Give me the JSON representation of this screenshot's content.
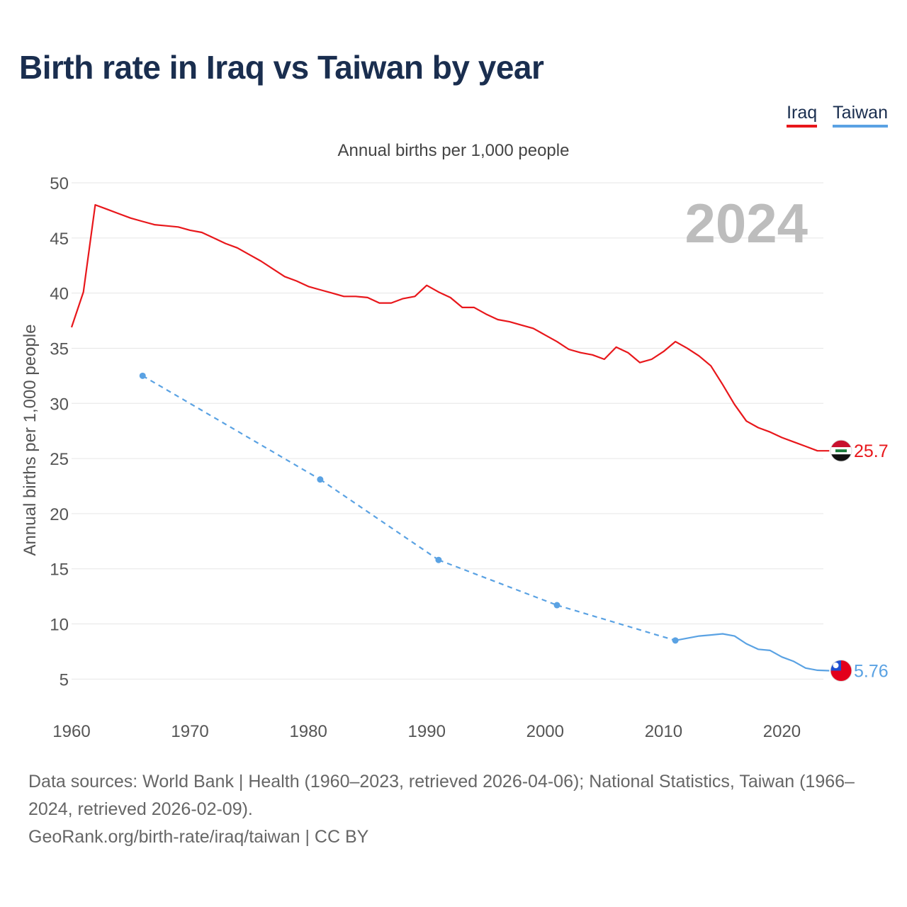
{
  "title": "Birth rate in Iraq vs Taiwan by year",
  "legend": [
    {
      "label": "Iraq",
      "color": "#e8171b"
    },
    {
      "label": "Taiwan",
      "color": "#5aa2e3"
    }
  ],
  "chart_data": {
    "type": "line",
    "title": "Annual births per 1,000 people",
    "xlabel": "",
    "ylabel": "Annual births per 1,000 people",
    "year_watermark": "2024",
    "xlim": [
      1960,
      2025
    ],
    "ylim": [
      2,
      50
    ],
    "x_ticks": [
      1960,
      1970,
      1980,
      1990,
      2000,
      2010,
      2020
    ],
    "y_ticks": [
      5,
      10,
      15,
      20,
      25,
      30,
      35,
      40,
      45,
      50
    ],
    "grid": true,
    "series": [
      {
        "name": "Iraq",
        "color": "#e8171b",
        "style": "solid",
        "end_label": "25.7",
        "end_icon": "iraq-flag-icon",
        "points": [
          [
            1960,
            36.9
          ],
          [
            1961,
            40.1
          ],
          [
            1962,
            48.0
          ],
          [
            1963,
            47.6
          ],
          [
            1964,
            47.2
          ],
          [
            1965,
            46.8
          ],
          [
            1966,
            46.5
          ],
          [
            1967,
            46.2
          ],
          [
            1968,
            46.1
          ],
          [
            1969,
            46.0
          ],
          [
            1970,
            45.7
          ],
          [
            1971,
            45.5
          ],
          [
            1972,
            45.0
          ],
          [
            1973,
            44.5
          ],
          [
            1974,
            44.1
          ],
          [
            1975,
            43.5
          ],
          [
            1976,
            42.9
          ],
          [
            1977,
            42.2
          ],
          [
            1978,
            41.5
          ],
          [
            1979,
            41.1
          ],
          [
            1980,
            40.6
          ],
          [
            1981,
            40.3
          ],
          [
            1982,
            40.0
          ],
          [
            1983,
            39.7
          ],
          [
            1984,
            39.7
          ],
          [
            1985,
            39.6
          ],
          [
            1986,
            39.1
          ],
          [
            1987,
            39.1
          ],
          [
            1988,
            39.5
          ],
          [
            1989,
            39.7
          ],
          [
            1990,
            40.7
          ],
          [
            1991,
            40.1
          ],
          [
            1992,
            39.6
          ],
          [
            1993,
            38.7
          ],
          [
            1994,
            38.7
          ],
          [
            1995,
            38.1
          ],
          [
            1996,
            37.6
          ],
          [
            1997,
            37.4
          ],
          [
            1998,
            37.1
          ],
          [
            1999,
            36.8
          ],
          [
            2000,
            36.2
          ],
          [
            2001,
            35.6
          ],
          [
            2002,
            34.9
          ],
          [
            2003,
            34.6
          ],
          [
            2004,
            34.4
          ],
          [
            2005,
            34.0
          ],
          [
            2006,
            35.1
          ],
          [
            2007,
            34.6
          ],
          [
            2008,
            33.7
          ],
          [
            2009,
            34.0
          ],
          [
            2010,
            34.7
          ],
          [
            2011,
            35.6
          ],
          [
            2012,
            35.0
          ],
          [
            2013,
            34.3
          ],
          [
            2014,
            33.4
          ],
          [
            2015,
            31.7
          ],
          [
            2016,
            29.9
          ],
          [
            2017,
            28.4
          ],
          [
            2018,
            27.8
          ],
          [
            2019,
            27.4
          ],
          [
            2020,
            26.9
          ],
          [
            2021,
            26.5
          ],
          [
            2022,
            26.1
          ],
          [
            2023,
            25.7
          ],
          [
            2024,
            25.7
          ]
        ]
      },
      {
        "name": "Taiwan",
        "color": "#5aa2e3",
        "style": "solid",
        "gap_style": "dashed",
        "marker_points": [
          1966,
          1981,
          1991,
          2001,
          2011
        ],
        "end_label": "5.76",
        "end_icon": "taiwan-flag-icon",
        "points": [
          [
            1966,
            32.5
          ],
          [
            1981,
            23.1
          ],
          [
            1991,
            15.8
          ],
          [
            2001,
            11.7
          ],
          [
            2011,
            8.5
          ],
          [
            2012,
            8.7
          ],
          [
            2013,
            8.9
          ],
          [
            2014,
            9.0
          ],
          [
            2015,
            9.1
          ],
          [
            2016,
            8.9
          ],
          [
            2017,
            8.2
          ],
          [
            2018,
            7.7
          ],
          [
            2019,
            7.6
          ],
          [
            2020,
            7.0
          ],
          [
            2021,
            6.6
          ],
          [
            2022,
            6.0
          ],
          [
            2023,
            5.8
          ],
          [
            2024,
            5.76
          ]
        ]
      }
    ]
  },
  "footer": {
    "line1": "Data sources: World Bank | Health (1960–2023, retrieved 2026-04-06); National Statistics, Taiwan (1966–2024, retrieved 2026-02-09).",
    "line2": "GeoRank.org/birth-rate/iraq/taiwan | CC BY"
  }
}
